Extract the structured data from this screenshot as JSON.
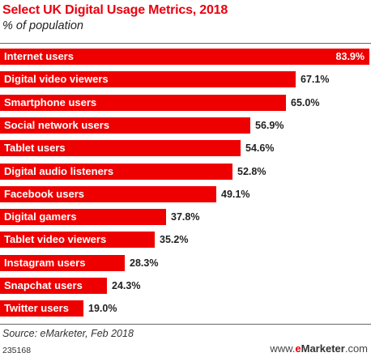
{
  "chart_data": {
    "type": "bar",
    "orientation": "horizontal",
    "title": "Select UK Digital Usage Metrics, 2018",
    "subtitle": "% of population",
    "categories": [
      "Internet users",
      "Digital video viewers",
      "Smartphone users",
      "Social network users",
      "Tablet users",
      "Digital audio listeners",
      "Facebook users",
      "Digital gamers",
      "Tablet video viewers",
      "Instagram users",
      "Snapchat users",
      "Twitter users"
    ],
    "values": [
      83.9,
      67.1,
      65.0,
      56.9,
      54.6,
      52.8,
      49.1,
      37.8,
      35.2,
      28.3,
      24.3,
      19.0
    ],
    "value_labels": [
      "83.9%",
      "67.1%",
      "65.0%",
      "56.9%",
      "54.6%",
      "52.8%",
      "49.1%",
      "37.8%",
      "35.2%",
      "28.3%",
      "24.3%",
      "19.0%"
    ],
    "xlim": [
      0,
      83.9
    ],
    "colors": {
      "bar": "#ee0000",
      "title": "#e8000f"
    }
  },
  "footer": {
    "source": "Source: eMarketer, Feb 2018",
    "chart_id": "235168",
    "brand_prefix": "www.",
    "brand_e": "e",
    "brand_rest": "Marketer",
    "brand_suffix": ".com"
  }
}
